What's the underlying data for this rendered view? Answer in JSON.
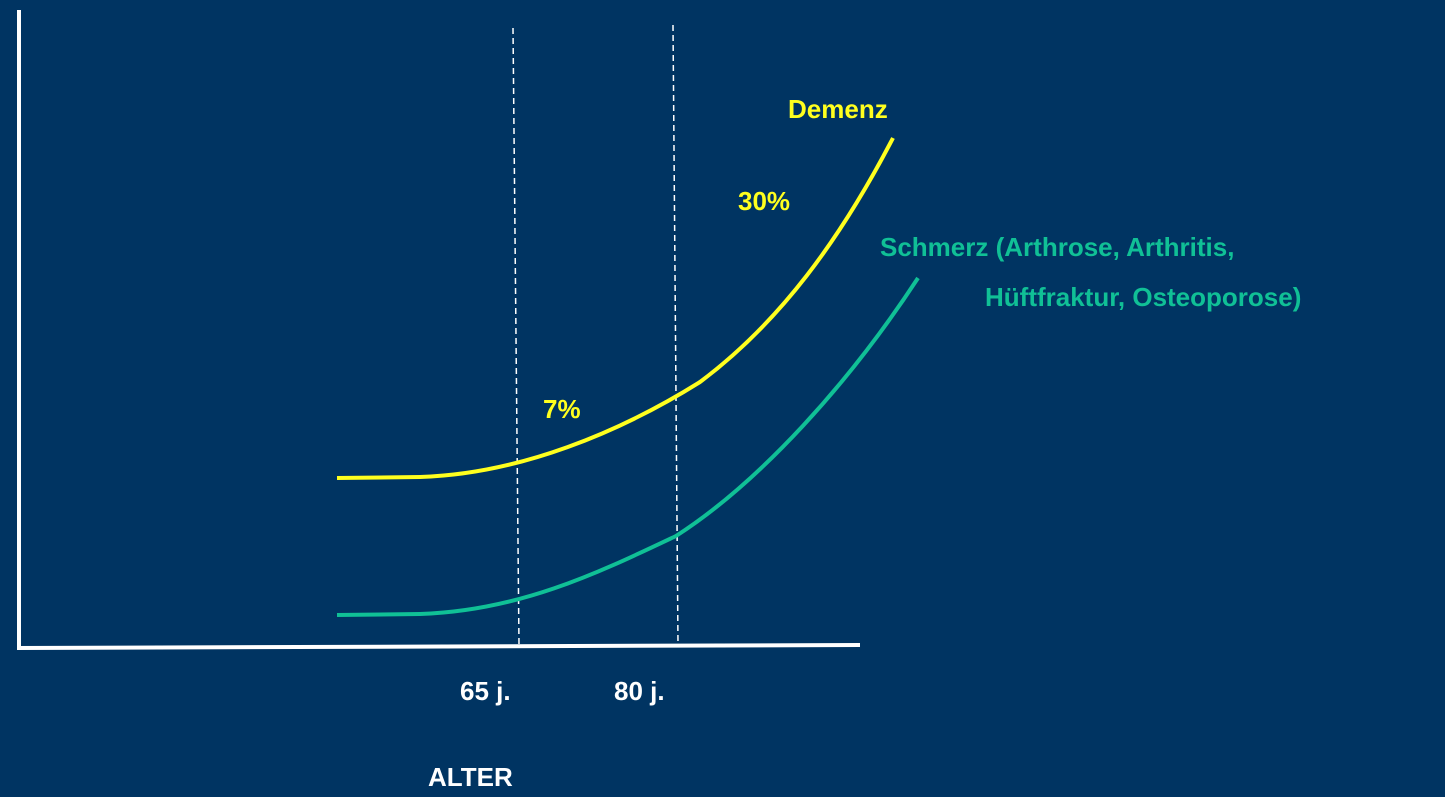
{
  "labels": {
    "dementia": "Demenz",
    "dementia_high": "30%",
    "dementia_low": "7%",
    "pain": [
      "Schmerz (Arthrose, Arthritis,",
      "Hüftfraktur, Osteoporose)"
    ]
  },
  "x_labels": [
    "65 j.",
    "80 j."
  ],
  "x_axis_title": "ALTER"
}
